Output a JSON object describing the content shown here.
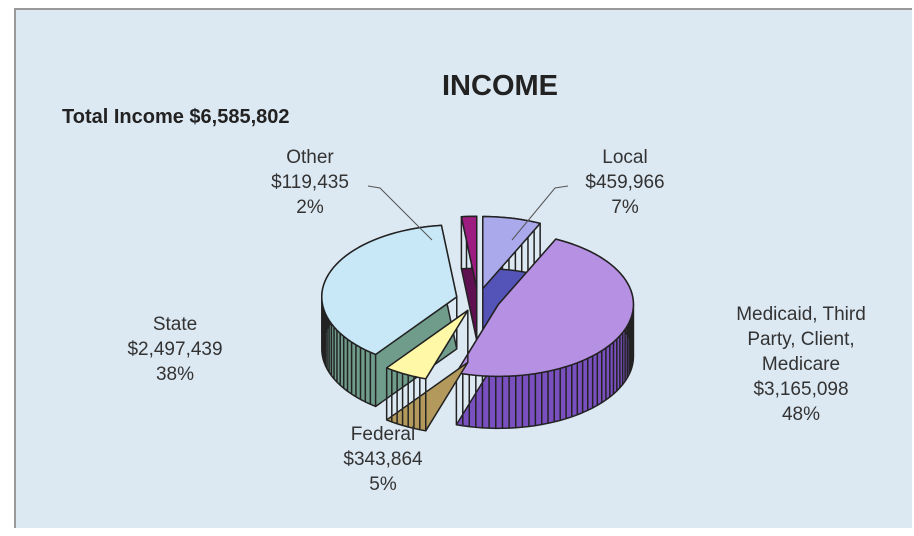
{
  "chart_data": {
    "type": "pie3d",
    "title": "INCOME",
    "subtitle": "Total Income $6,585,802",
    "categories": [
      "Local",
      "Medicaid, Third Party, Client, Medicare",
      "Federal",
      "State",
      "Other"
    ],
    "values": [
      459966,
      3165098,
      343864,
      2497439,
      119435
    ],
    "value_labels": [
      "$459,966",
      "$3,165,098",
      "$343,864",
      "$2,497,439",
      "$119,435"
    ],
    "percent_labels": [
      "7%",
      "48%",
      "5%",
      "38%",
      "2%"
    ],
    "colors": [
      "#a9a9ec",
      "#b690e2",
      "#fff8a6",
      "#c8e8f8",
      "#9c1c80"
    ],
    "side_colors": [
      "#5454b8",
      "#7a50c0",
      "#b39a5c",
      "#709c8c",
      "#5e1050"
    ]
  }
}
